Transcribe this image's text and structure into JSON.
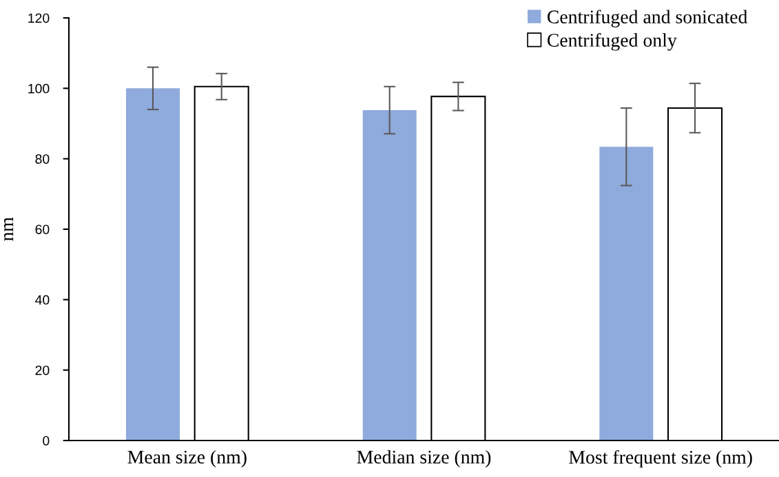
{
  "chart_data": {
    "type": "bar",
    "ylabel": "nm",
    "categories": [
      "Mean size (nm)",
      "Median size (nm)",
      "Most frequent size (nm)"
    ],
    "series": [
      {
        "name": "Centrifuged and sonicated",
        "color": "#8faadc",
        "values": [
          100,
          93.8,
          83.4
        ],
        "errors": [
          6,
          6.7,
          11
        ]
      },
      {
        "name": "Centrifuged only",
        "color": "#ffffff",
        "values": [
          100.5,
          97.7,
          94.4
        ],
        "errors": [
          3.7,
          4,
          7
        ]
      }
    ],
    "ylim": [
      0,
      120
    ],
    "yticks": [
      0,
      20,
      40,
      60,
      80,
      100,
      120
    ],
    "grid": false,
    "legend": "top right"
  }
}
